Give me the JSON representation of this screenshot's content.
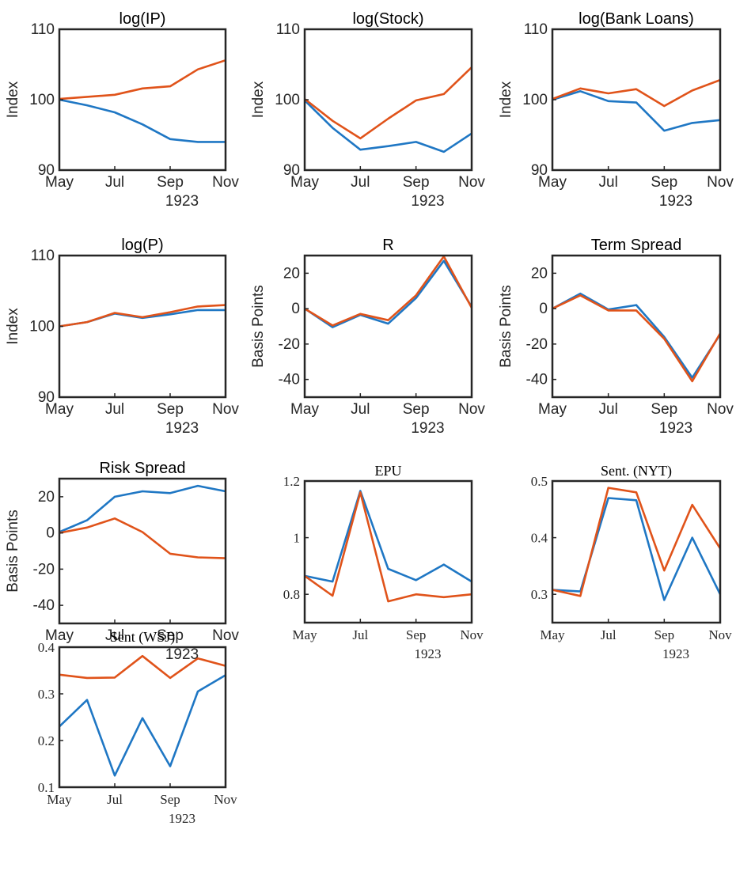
{
  "colors": {
    "series_blue": "#1f77c4",
    "series_orange": "#e0531a",
    "axis": "#262626"
  },
  "chart_data": [
    {
      "type": "line",
      "title": "log(IP)",
      "ylabel": "Index",
      "xlabel": "1923",
      "x": [
        "May",
        "Jun",
        "Jul",
        "Aug",
        "Sep",
        "Oct",
        "Nov"
      ],
      "xticks": [
        "May",
        "Jul",
        "Sep",
        "Nov"
      ],
      "ylim": [
        90,
        110
      ],
      "yticks": [
        "90",
        "100",
        "110"
      ],
      "series": [
        {
          "color": "blue",
          "values": [
            100,
            99.2,
            98.2,
            96.5,
            94.4,
            94.0,
            94.0
          ]
        },
        {
          "color": "orange",
          "values": [
            100.1,
            100.4,
            100.7,
            101.6,
            101.9,
            104.3,
            105.6
          ]
        }
      ]
    },
    {
      "type": "line",
      "title": "log(Stock)",
      "ylabel": "Index",
      "xlabel": "1923",
      "x": [
        "May",
        "Jun",
        "Jul",
        "Aug",
        "Sep",
        "Oct",
        "Nov"
      ],
      "xticks": [
        "May",
        "Jul",
        "Sep",
        "Nov"
      ],
      "ylim": [
        90,
        110
      ],
      "yticks": [
        "90",
        "100",
        "110"
      ],
      "series": [
        {
          "color": "blue",
          "values": [
            99.9,
            96.0,
            92.9,
            93.4,
            94.0,
            92.6,
            95.2
          ]
        },
        {
          "color": "orange",
          "values": [
            100.1,
            97.0,
            94.5,
            97.3,
            99.9,
            100.8,
            104.6
          ]
        }
      ]
    },
    {
      "type": "line",
      "title": "log(Bank Loans)",
      "ylabel": "Index",
      "xlabel": "1923",
      "x": [
        "May",
        "Jun",
        "Jul",
        "Aug",
        "Sep",
        "Oct",
        "Nov"
      ],
      "xticks": [
        "May",
        "Jul",
        "Sep",
        "Nov"
      ],
      "ylim": [
        90,
        110
      ],
      "yticks": [
        "90",
        "100",
        "110"
      ],
      "series": [
        {
          "color": "blue",
          "values": [
            100,
            101.2,
            99.8,
            99.6,
            95.6,
            96.7,
            97.1
          ]
        },
        {
          "color": "orange",
          "values": [
            100.1,
            101.6,
            100.9,
            101.5,
            99.1,
            101.3,
            102.8
          ]
        }
      ]
    },
    {
      "type": "line",
      "title": "log(P)",
      "ylabel": "Index",
      "xlabel": "1923",
      "x": [
        "May",
        "Jun",
        "Jul",
        "Aug",
        "Sep",
        "Oct",
        "Nov"
      ],
      "xticks": [
        "May",
        "Jul",
        "Sep",
        "Nov"
      ],
      "ylim": [
        90,
        110
      ],
      "yticks": [
        "90",
        "100",
        "110"
      ],
      "series": [
        {
          "color": "blue",
          "values": [
            100,
            100.6,
            101.8,
            101.2,
            101.7,
            102.3,
            102.3
          ]
        },
        {
          "color": "orange",
          "values": [
            100,
            100.6,
            101.9,
            101.3,
            102.0,
            102.8,
            103.0
          ]
        }
      ]
    },
    {
      "type": "line",
      "title": "R",
      "ylabel": "Basis Points",
      "xlabel": "1923",
      "x": [
        "May",
        "Jun",
        "Jul",
        "Aug",
        "Sep",
        "Oct",
        "Nov"
      ],
      "xticks": [
        "May",
        "Jul",
        "Sep",
        "Nov"
      ],
      "ylim": [
        -50,
        30
      ],
      "yticks": [
        "-40",
        "-20",
        "0",
        "20"
      ],
      "series": [
        {
          "color": "blue",
          "values": [
            0,
            -10.5,
            -3.5,
            -8.5,
            6.0,
            27.0,
            1.0
          ]
        },
        {
          "color": "orange",
          "values": [
            0,
            -9.5,
            -3.0,
            -6.5,
            7.5,
            29.5,
            0.5
          ]
        }
      ]
    },
    {
      "type": "line",
      "title": "Term Spread",
      "ylabel": "Basis Points",
      "xlabel": "1923",
      "x": [
        "May",
        "Jun",
        "Jul",
        "Aug",
        "Sep",
        "Oct",
        "Nov"
      ],
      "xticks": [
        "May",
        "Jul",
        "Sep",
        "Nov"
      ],
      "ylim": [
        -50,
        30
      ],
      "yticks": [
        "-40",
        "-20",
        "0",
        "20"
      ],
      "series": [
        {
          "color": "blue",
          "values": [
            0,
            8.5,
            -0.5,
            2.0,
            -16.0,
            -39.0,
            -14.5
          ]
        },
        {
          "color": "orange",
          "values": [
            0,
            7.5,
            -1.0,
            -1.0,
            -17.0,
            -41.0,
            -14.0
          ]
        }
      ]
    },
    {
      "type": "line",
      "title": "Risk Spread",
      "ylabel": "Basis Points",
      "xlabel": "1923",
      "x": [
        "May",
        "Jun",
        "Jul",
        "Aug",
        "Sep",
        "Oct",
        "Nov"
      ],
      "xticks": [
        "May",
        "Jul",
        "Sep",
        "Nov"
      ],
      "ylim": [
        -50,
        30
      ],
      "yticks": [
        "-40",
        "-20",
        "0",
        "20"
      ],
      "series": [
        {
          "color": "blue",
          "values": [
            0.5,
            7.0,
            20.0,
            23.0,
            22.0,
            26.0,
            23.0
          ]
        },
        {
          "color": "orange",
          "values": [
            0,
            3.0,
            8.0,
            0.5,
            -11.5,
            -13.5,
            -14.0
          ]
        }
      ]
    },
    {
      "type": "line",
      "title": "EPU",
      "ylabel": "",
      "xlabel": "1923",
      "x": [
        "May",
        "Jun",
        "Jul",
        "Aug",
        "Sep",
        "Oct",
        "Nov"
      ],
      "xticks": [
        "May",
        "Jul",
        "Sep",
        "Nov"
      ],
      "ylim": [
        0.7,
        1.2
      ],
      "yticks": [
        "0.8",
        "1",
        "1.2"
      ],
      "series": [
        {
          "color": "blue",
          "values": [
            0.865,
            0.845,
            1.165,
            0.89,
            0.85,
            0.905,
            0.845
          ]
        },
        {
          "color": "orange",
          "values": [
            0.865,
            0.795,
            1.16,
            0.775,
            0.8,
            0.79,
            0.8
          ]
        }
      ]
    },
    {
      "type": "line",
      "title": "Sent. (NYT)",
      "ylabel": "",
      "xlabel": "1923",
      "x": [
        "May",
        "Jun",
        "Jul",
        "Aug",
        "Sep",
        "Oct",
        "Nov"
      ],
      "xticks": [
        "May",
        "Jul",
        "Sep",
        "Nov"
      ],
      "ylim": [
        0.25,
        0.5
      ],
      "yticks": [
        "0.3",
        "0.4",
        "0.5"
      ],
      "series": [
        {
          "color": "blue",
          "values": [
            0.308,
            0.305,
            0.47,
            0.466,
            0.29,
            0.4,
            0.3
          ]
        },
        {
          "color": "orange",
          "values": [
            0.308,
            0.297,
            0.488,
            0.48,
            0.342,
            0.458,
            0.381
          ]
        }
      ]
    },
    {
      "type": "line",
      "title": "Sent (WSJ)",
      "ylabel": "",
      "xlabel": "1923",
      "x": [
        "May",
        "Jun",
        "Jul",
        "Aug",
        "Sep",
        "Oct",
        "Nov"
      ],
      "xticks": [
        "May",
        "Jul",
        "Sep",
        "Nov"
      ],
      "ylim": [
        0.1,
        0.4
      ],
      "yticks": [
        "0.1",
        "0.2",
        "0.3",
        "0.4"
      ],
      "series": [
        {
          "color": "blue",
          "values": [
            0.23,
            0.287,
            0.125,
            0.248,
            0.145,
            0.305,
            0.34
          ]
        },
        {
          "color": "orange",
          "values": [
            0.341,
            0.334,
            0.335,
            0.381,
            0.334,
            0.376,
            0.36
          ]
        }
      ]
    }
  ]
}
